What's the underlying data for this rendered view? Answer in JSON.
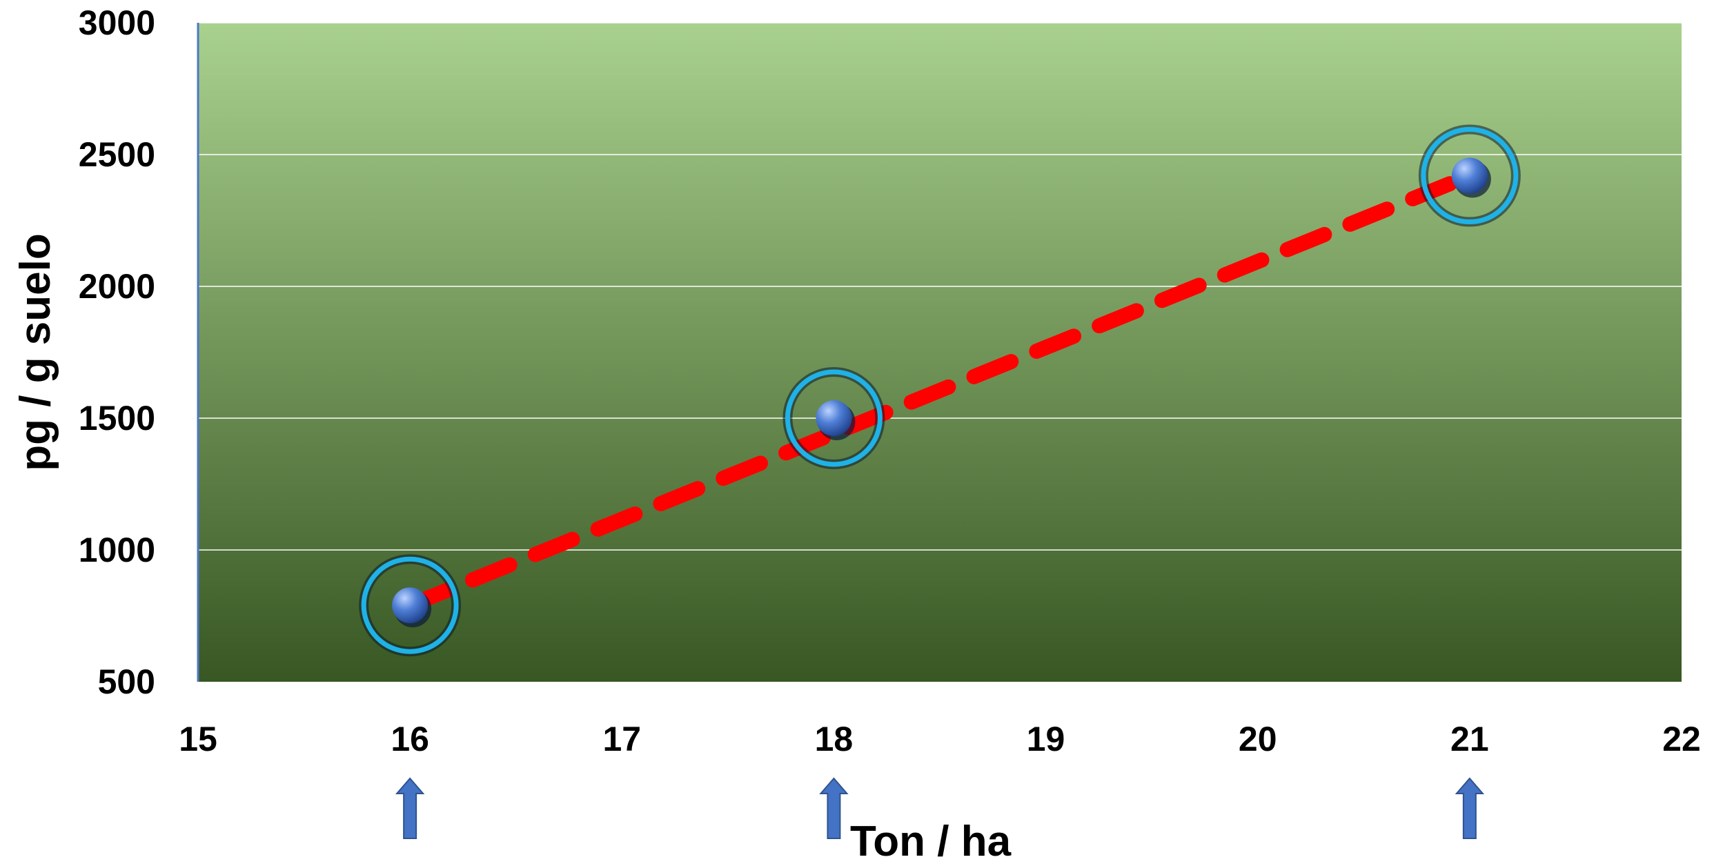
{
  "chart_data": {
    "type": "scatter",
    "title": "",
    "xlabel": "Ton / ha",
    "ylabel": "pg / g suelo",
    "xlim": [
      15,
      22
    ],
    "ylim": [
      500,
      3000
    ],
    "x_ticks": [
      "15",
      "16",
      "17",
      "18",
      "19",
      "20",
      "21",
      "22"
    ],
    "y_ticks": [
      "500",
      "1000",
      "1500",
      "2000",
      "2500",
      "3000"
    ],
    "grid": true,
    "legend": "none",
    "series": [
      {
        "points": [
          {
            "x": 16,
            "y": 790
          },
          {
            "x": 18,
            "y": 1500
          },
          {
            "x": 21,
            "y": 2420
          }
        ]
      }
    ],
    "trendline": {
      "style": "dashed",
      "color": "#ff0000",
      "from": {
        "x": 16,
        "y": 790
      },
      "to": {
        "x": 21,
        "y": 2420
      }
    },
    "highlighted_x": [
      16,
      18,
      21
    ],
    "colors": {
      "plot_top": "#a9d18e",
      "plot_bottom": "#385723",
      "marker": "#4472c4",
      "ring": "#1fb2e8",
      "arrow": "#4472c4",
      "trendline": "#ff0000"
    }
  }
}
